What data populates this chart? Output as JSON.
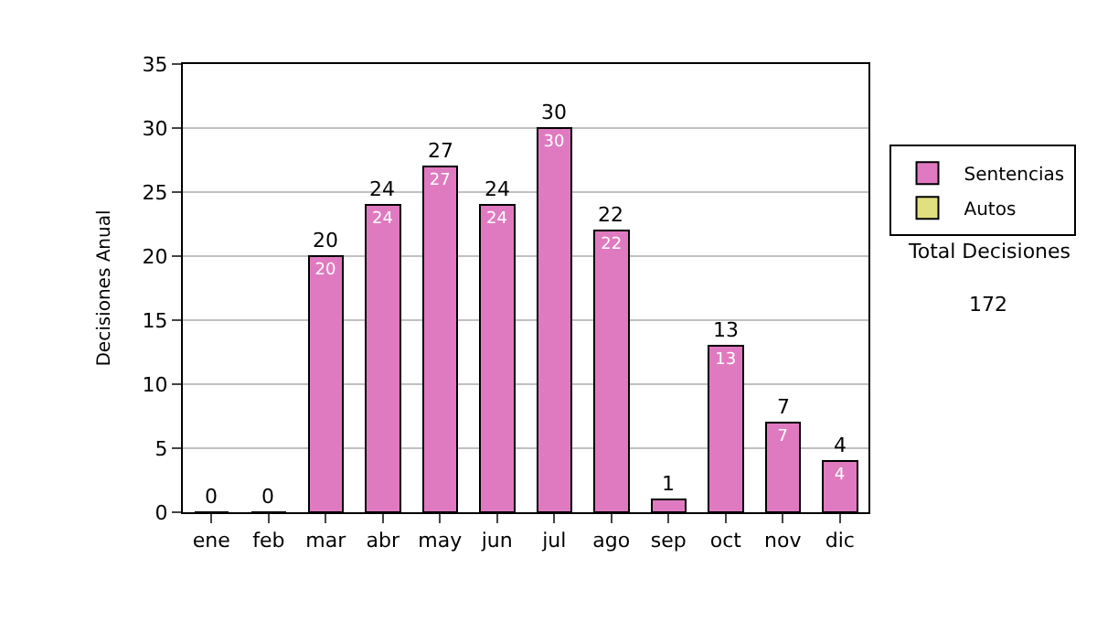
{
  "chart_data": {
    "type": "bar",
    "ylabel": "Decisiones Anual",
    "categories": [
      "ene",
      "feb",
      "mar",
      "abr",
      "may",
      "jun",
      "jul",
      "ago",
      "sep",
      "oct",
      "nov",
      "dic"
    ],
    "series": [
      {
        "name": "Sentencias",
        "color": "#e07ac0",
        "values": [
          0,
          0,
          20,
          24,
          27,
          24,
          30,
          22,
          1,
          13,
          7,
          4
        ],
        "value_labels": [
          null,
          null,
          "20",
          "24",
          "27",
          "24",
          "30",
          "22",
          null,
          "13",
          "7",
          "4"
        ]
      },
      {
        "name": "Autos",
        "color": "#e0e080",
        "values": [
          null,
          null,
          null,
          null,
          null,
          null,
          null,
          null,
          null,
          null,
          null,
          null
        ]
      }
    ],
    "stacked": true,
    "totals": [
      "0",
      "0",
      "20",
      "24",
      "27",
      "24",
      "30",
      "22",
      "1",
      "13",
      "7",
      "4"
    ],
    "ylim": [
      0,
      35
    ],
    "yticks": [
      0,
      5,
      10,
      15,
      20,
      25,
      30,
      35
    ],
    "grid": "y",
    "legend": "right",
    "annotations": [
      "Total Decisiones",
      "172"
    ]
  }
}
